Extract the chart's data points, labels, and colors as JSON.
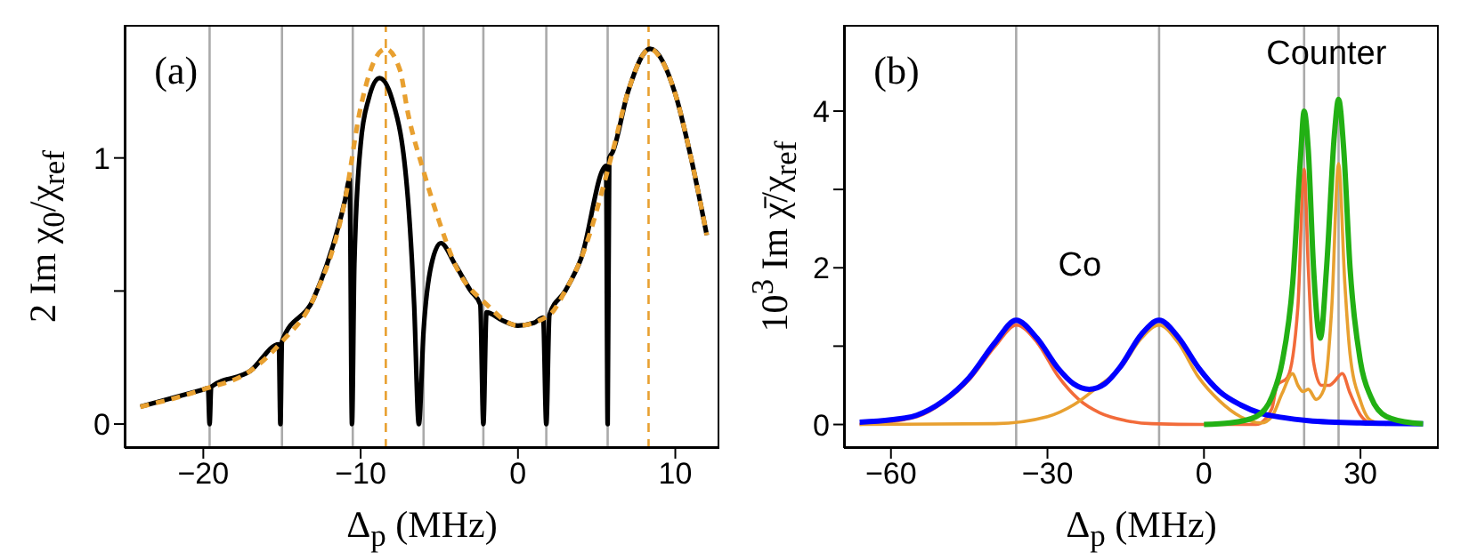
{
  "chart_data": [
    {
      "type": "line",
      "xlabel": "Δ$_{p}$ (MHz)",
      "ylabel": "2 Im χ$_{0}$/χ$_{ref}$",
      "annotations": [
        "(a)"
      ],
      "xlim": [
        -25,
        12.8
      ],
      "ylim": [
        -0.09,
        1.5
      ],
      "xticks": [
        -20,
        -10,
        0,
        10
      ],
      "yticks": [
        0,
        {
          "value": 0.5,
          "label": null
        },
        1
      ],
      "series": [
        {
          "color": "#000000",
          "line_style": "solid",
          "x": [
            -24,
            -20,
            -19.7,
            -19.6,
            -19.5,
            -17,
            -15.2,
            -15.1,
            -15,
            -13,
            -11,
            -10.7,
            -10.55,
            -10.4,
            -10,
            -9.5,
            -8.8,
            -8,
            -7,
            -6.6,
            -6.3,
            -6,
            -5.5,
            -4.9,
            -4,
            -3,
            -2.4,
            -2.2,
            -2,
            -1,
            0,
            1,
            1.6,
            1.8,
            2,
            3,
            4,
            5.6,
            5.7,
            5.8,
            6,
            7,
            8.4,
            10,
            11,
            12
          ],
          "values": [
            0.065,
            0.13,
            0.135,
            0,
            0.14,
            0.2,
            0.3,
            0,
            0.31,
            0.47,
            0.84,
            0.92,
            0,
            0.6,
            1.05,
            1.22,
            1.3,
            1.22,
            0.85,
            0.45,
            0,
            0.35,
            0.6,
            0.68,
            0.6,
            0.5,
            0.45,
            0,
            0.42,
            0.39,
            0.37,
            0.38,
            0.4,
            0,
            0.41,
            0.5,
            0.62,
            0.97,
            0,
            1,
            1.02,
            1.25,
            1.41,
            1.24,
            1,
            0.71
          ]
        },
        {
          "color": "#e8a030",
          "line_style": "dashed",
          "x": [
            -24,
            -20,
            -17,
            -15,
            -13,
            -11,
            -10,
            -9,
            -8.4,
            -7.5,
            -7,
            -6,
            -5,
            -4,
            -2,
            0,
            2,
            3,
            4,
            6,
            7,
            8.4,
            9,
            10,
            11,
            12
          ],
          "values": [
            0.065,
            0.13,
            0.2,
            0.31,
            0.47,
            0.84,
            1.19,
            1.38,
            1.41,
            1.33,
            1.17,
            0.95,
            0.76,
            0.6,
            0.45,
            0.37,
            0.41,
            0.5,
            0.62,
            1.02,
            1.25,
            1.41,
            1.38,
            1.24,
            1,
            0.71
          ]
        }
      ],
      "ref_lines": [
        {
          "axis": "x",
          "value": -19.6,
          "color": "#aaaaaa",
          "line_style": "solid"
        },
        {
          "axis": "x",
          "value": -15,
          "color": "#aaaaaa",
          "line_style": "solid"
        },
        {
          "axis": "x",
          "value": -10.5,
          "color": "#aaaaaa",
          "line_style": "solid"
        },
        {
          "axis": "x",
          "value": -6,
          "color": "#aaaaaa",
          "line_style": "solid"
        },
        {
          "axis": "x",
          "value": -2.2,
          "color": "#aaaaaa",
          "line_style": "solid"
        },
        {
          "axis": "x",
          "value": 1.8,
          "color": "#aaaaaa",
          "line_style": "solid"
        },
        {
          "axis": "x",
          "value": 5.7,
          "color": "#aaaaaa",
          "line_style": "solid"
        },
        {
          "axis": "x",
          "value": -8.4,
          "color": "#e8a030",
          "line_style": "dashed"
        },
        {
          "axis": "x",
          "value": 8.3,
          "color": "#e8a030",
          "line_style": "dashed"
        }
      ]
    },
    {
      "type": "line",
      "xlabel": "Δ$_{p}$ (MHz)",
      "ylabel": "10$^{3}$ Im χ̄/χ$_{ref}$",
      "annotations": [
        "(b)",
        "Co",
        "Counter"
      ],
      "xlim": [
        -69,
        45
      ],
      "ylim": [
        -0.3,
        5.1
      ],
      "xticks": [
        -60,
        -30,
        0,
        30
      ],
      "yticks": [
        0,
        {
          "value": 1,
          "label": null
        },
        2,
        {
          "value": 3,
          "label": null
        },
        4
      ],
      "series": [
        {
          "color": "#f26b3a",
          "x": [
            -66,
            -55,
            -50,
            -45,
            -40,
            -36,
            -32,
            -28,
            -24,
            -20,
            -15,
            -10,
            0,
            10,
            13,
            14,
            16,
            18,
            19.2,
            20,
            21,
            22.5,
            24,
            25,
            26.5,
            28,
            30,
            32
          ],
          "values": [
            0,
            0.1,
            0.28,
            0.57,
            1,
            1.27,
            1.05,
            0.62,
            0.32,
            0.15,
            0.05,
            0.01,
            0,
            0,
            0.2,
            0.5,
            0.6,
            1.5,
            3.26,
            2,
            0.8,
            0.5,
            0.5,
            0.55,
            0.65,
            0.4,
            0.12,
            0
          ]
        },
        {
          "color": "#e8a030",
          "x": [
            -66,
            -40,
            -30,
            -25,
            -20,
            -16,
            -12,
            -8.6,
            -5,
            -1,
            3,
            7,
            11,
            13,
            15,
            17,
            18,
            19,
            20,
            21.5,
            23,
            24.5,
            25.8,
            27,
            28,
            30,
            32,
            35
          ],
          "values": [
            0,
            0.01,
            0.1,
            0.25,
            0.5,
            0.72,
            1.1,
            1.27,
            1.05,
            0.6,
            0.3,
            0.1,
            0.02,
            0.1,
            0.4,
            0.65,
            0.5,
            0.42,
            0.45,
            0.32,
            0.45,
            1.5,
            3.33,
            1.8,
            0.9,
            0.3,
            0.05,
            0
          ]
        },
        {
          "color": "#0000ff",
          "x": [
            -66,
            -60,
            -55,
            -50,
            -45,
            -40,
            -36,
            -32,
            -28,
            -25,
            -22,
            -19,
            -16,
            -12,
            -8.6,
            -5,
            -1,
            3,
            7,
            11,
            15,
            20,
            30,
            42
          ],
          "values": [
            0.03,
            0.06,
            0.12,
            0.3,
            0.6,
            1.05,
            1.33,
            1.1,
            0.72,
            0.52,
            0.45,
            0.52,
            0.74,
            1.15,
            1.33,
            1.12,
            0.72,
            0.42,
            0.25,
            0.14,
            0.09,
            0.05,
            0.02,
            0.01
          ]
        },
        {
          "color": "#22b014",
          "x": [
            0,
            5,
            10,
            13,
            15,
            17,
            18.5,
            19.2,
            20,
            21,
            22.3,
            23.5,
            25,
            25.8,
            26.8,
            28,
            30,
            32,
            35,
            40,
            42
          ],
          "values": [
            0,
            0.02,
            0.1,
            0.35,
            0.8,
            1.8,
            3.4,
            4,
            3.5,
            2,
            1.1,
            2,
            3.7,
            4.15,
            3.5,
            2,
            0.8,
            0.35,
            0.1,
            0.02,
            0.01
          ]
        }
      ],
      "ref_lines": [
        {
          "axis": "x",
          "value": -36,
          "color": "#aaaaaa"
        },
        {
          "axis": "x",
          "value": -8.6,
          "color": "#aaaaaa"
        },
        {
          "axis": "x",
          "value": 19.2,
          "color": "#aaaaaa"
        },
        {
          "axis": "x",
          "value": 25.8,
          "color": "#aaaaaa"
        }
      ]
    }
  ]
}
